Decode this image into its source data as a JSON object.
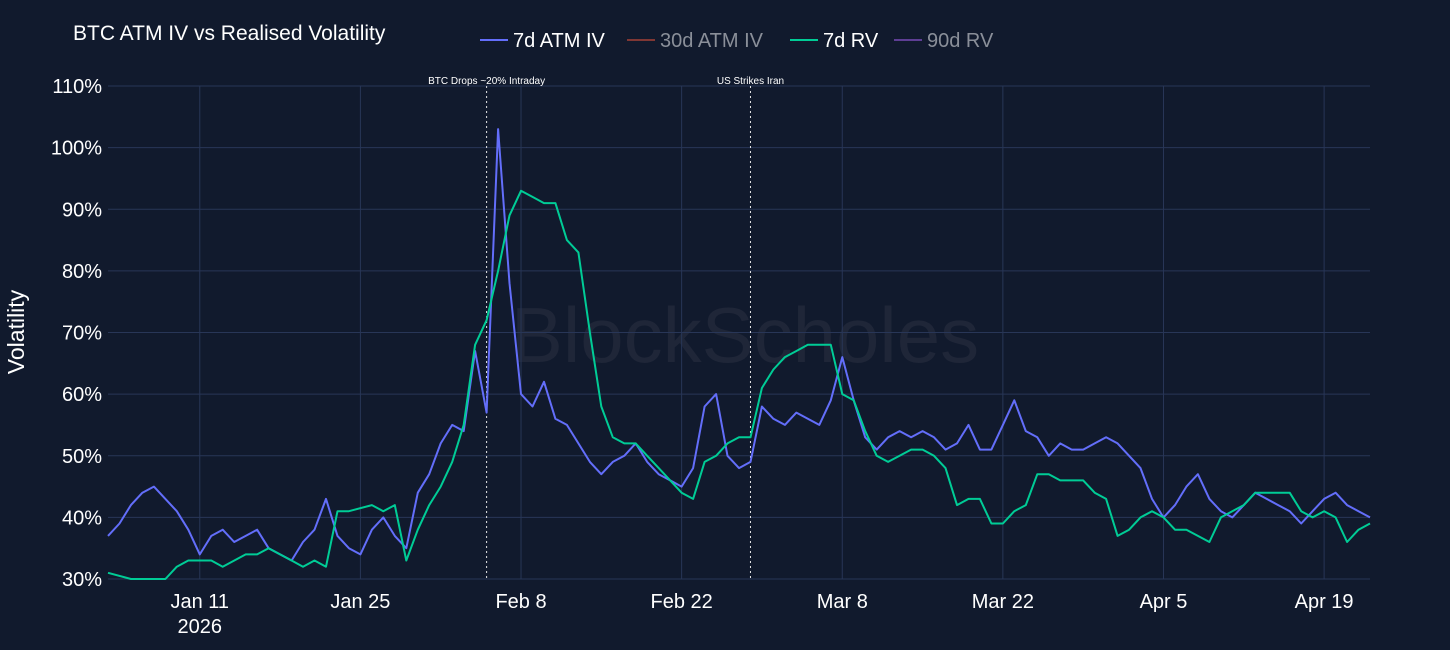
{
  "chart_data": {
    "type": "line",
    "title": "BTC ATM IV vs Realised Volatility",
    "xlabel": "",
    "ylabel": "Volatility",
    "watermark": "BlockScholes",
    "y_unit": "%",
    "ylim": [
      30,
      110
    ],
    "y_ticks": [
      "30%",
      "40%",
      "50%",
      "60%",
      "70%",
      "80%",
      "90%",
      "100%",
      "110%"
    ],
    "xlim": [
      "2026-01-03",
      "2026-04-23"
    ],
    "x_ticks": [
      {
        "date": "2026-01-11",
        "label": "Jan 11",
        "sublabel": "2026"
      },
      {
        "date": "2026-01-25",
        "label": "Jan 25",
        "sublabel": ""
      },
      {
        "date": "2026-02-08",
        "label": "Feb 8",
        "sublabel": ""
      },
      {
        "date": "2026-02-22",
        "label": "Feb 22",
        "sublabel": ""
      },
      {
        "date": "2026-03-08",
        "label": "Mar 8",
        "sublabel": ""
      },
      {
        "date": "2026-03-22",
        "label": "Mar 22",
        "sublabel": ""
      },
      {
        "date": "2026-04-05",
        "label": "Apr 5",
        "sublabel": ""
      },
      {
        "date": "2026-04-19",
        "label": "Apr 19",
        "sublabel": ""
      }
    ],
    "annotations": [
      {
        "date": "2026-02-05",
        "label": "BTC Drops ~20% Intraday"
      },
      {
        "date": "2026-02-28",
        "label": "US Strikes Iran"
      }
    ],
    "legend_position": "top",
    "grid": true,
    "series": [
      {
        "name": "7d ATM IV",
        "color": "#636efa",
        "visible": true,
        "points": [
          [
            "2026-01-03",
            37
          ],
          [
            "2026-01-04",
            39
          ],
          [
            "2026-01-05",
            42
          ],
          [
            "2026-01-06",
            44
          ],
          [
            "2026-01-07",
            45
          ],
          [
            "2026-01-08",
            43
          ],
          [
            "2026-01-09",
            41
          ],
          [
            "2026-01-10",
            38
          ],
          [
            "2026-01-11",
            34
          ],
          [
            "2026-01-12",
            37
          ],
          [
            "2026-01-13",
            38
          ],
          [
            "2026-01-14",
            36
          ],
          [
            "2026-01-15",
            37
          ],
          [
            "2026-01-16",
            38
          ],
          [
            "2026-01-17",
            35
          ],
          [
            "2026-01-18",
            34
          ],
          [
            "2026-01-19",
            33
          ],
          [
            "2026-01-20",
            36
          ],
          [
            "2026-01-21",
            38
          ],
          [
            "2026-01-22",
            43
          ],
          [
            "2026-01-23",
            37
          ],
          [
            "2026-01-24",
            35
          ],
          [
            "2026-01-25",
            34
          ],
          [
            "2026-01-26",
            38
          ],
          [
            "2026-01-27",
            40
          ],
          [
            "2026-01-28",
            37
          ],
          [
            "2026-01-29",
            35
          ],
          [
            "2026-01-30",
            44
          ],
          [
            "2026-01-31",
            47
          ],
          [
            "2026-02-01",
            52
          ],
          [
            "2026-02-02",
            55
          ],
          [
            "2026-02-03",
            54
          ],
          [
            "2026-02-04",
            67
          ],
          [
            "2026-02-05",
            57
          ],
          [
            "2026-02-06",
            103
          ],
          [
            "2026-02-07",
            78
          ],
          [
            "2026-02-08",
            60
          ],
          [
            "2026-02-09",
            58
          ],
          [
            "2026-02-10",
            62
          ],
          [
            "2026-02-11",
            56
          ],
          [
            "2026-02-12",
            55
          ],
          [
            "2026-02-13",
            52
          ],
          [
            "2026-02-14",
            49
          ],
          [
            "2026-02-15",
            47
          ],
          [
            "2026-02-16",
            49
          ],
          [
            "2026-02-17",
            50
          ],
          [
            "2026-02-18",
            52
          ],
          [
            "2026-02-19",
            49
          ],
          [
            "2026-02-20",
            47
          ],
          [
            "2026-02-21",
            46
          ],
          [
            "2026-02-22",
            45
          ],
          [
            "2026-02-23",
            48
          ],
          [
            "2026-02-24",
            58
          ],
          [
            "2026-02-25",
            60
          ],
          [
            "2026-02-26",
            50
          ],
          [
            "2026-02-27",
            48
          ],
          [
            "2026-02-28",
            49
          ],
          [
            "2026-03-01",
            58
          ],
          [
            "2026-03-02",
            56
          ],
          [
            "2026-03-03",
            55
          ],
          [
            "2026-03-04",
            57
          ],
          [
            "2026-03-05",
            56
          ],
          [
            "2026-03-06",
            55
          ],
          [
            "2026-03-07",
            59
          ],
          [
            "2026-03-08",
            66
          ],
          [
            "2026-03-09",
            59
          ],
          [
            "2026-03-10",
            53
          ],
          [
            "2026-03-11",
            51
          ],
          [
            "2026-03-12",
            53
          ],
          [
            "2026-03-13",
            54
          ],
          [
            "2026-03-14",
            53
          ],
          [
            "2026-03-15",
            54
          ],
          [
            "2026-03-16",
            53
          ],
          [
            "2026-03-17",
            51
          ],
          [
            "2026-03-18",
            52
          ],
          [
            "2026-03-19",
            55
          ],
          [
            "2026-03-20",
            51
          ],
          [
            "2026-03-21",
            51
          ],
          [
            "2026-03-22",
            55
          ],
          [
            "2026-03-23",
            59
          ],
          [
            "2026-03-24",
            54
          ],
          [
            "2026-03-25",
            53
          ],
          [
            "2026-03-26",
            50
          ],
          [
            "2026-03-27",
            52
          ],
          [
            "2026-03-28",
            51
          ],
          [
            "2026-03-29",
            51
          ],
          [
            "2026-03-30",
            52
          ],
          [
            "2026-03-31",
            53
          ],
          [
            "2026-04-01",
            52
          ],
          [
            "2026-04-02",
            50
          ],
          [
            "2026-04-03",
            48
          ],
          [
            "2026-04-04",
            43
          ],
          [
            "2026-04-05",
            40
          ],
          [
            "2026-04-06",
            42
          ],
          [
            "2026-04-07",
            45
          ],
          [
            "2026-04-08",
            47
          ],
          [
            "2026-04-09",
            43
          ],
          [
            "2026-04-10",
            41
          ],
          [
            "2026-04-11",
            40
          ],
          [
            "2026-04-12",
            42
          ],
          [
            "2026-04-13",
            44
          ],
          [
            "2026-04-14",
            43
          ],
          [
            "2026-04-15",
            42
          ],
          [
            "2026-04-16",
            41
          ],
          [
            "2026-04-17",
            39
          ],
          [
            "2026-04-18",
            41
          ],
          [
            "2026-04-19",
            43
          ],
          [
            "2026-04-20",
            44
          ],
          [
            "2026-04-21",
            42
          ],
          [
            "2026-04-22",
            41
          ],
          [
            "2026-04-23",
            40
          ]
        ]
      },
      {
        "name": "30d ATM IV",
        "color": "#ef553b",
        "visible": false,
        "points": []
      },
      {
        "name": "7d RV",
        "color": "#00cc96",
        "visible": true,
        "points": [
          [
            "2026-01-03",
            31
          ],
          [
            "2026-01-05",
            28
          ],
          [
            "2026-01-08",
            29
          ],
          [
            "2026-01-09",
            32
          ],
          [
            "2026-01-10",
            33
          ],
          [
            "2026-01-12",
            33
          ],
          [
            "2026-01-13",
            32
          ],
          [
            "2026-01-15",
            34
          ],
          [
            "2026-01-16",
            34
          ],
          [
            "2026-01-17",
            35
          ],
          [
            "2026-01-19",
            33
          ],
          [
            "2026-01-20",
            32
          ],
          [
            "2026-01-21",
            33
          ],
          [
            "2026-01-22",
            32
          ],
          [
            "2026-01-23",
            41
          ],
          [
            "2026-01-24",
            41
          ],
          [
            "2026-01-26",
            42
          ],
          [
            "2026-01-27",
            41
          ],
          [
            "2026-01-28",
            42
          ],
          [
            "2026-01-29",
            33
          ],
          [
            "2026-01-30",
            38
          ],
          [
            "2026-01-31",
            42
          ],
          [
            "2026-02-01",
            45
          ],
          [
            "2026-02-02",
            49
          ],
          [
            "2026-02-03",
            55
          ],
          [
            "2026-02-04",
            68
          ],
          [
            "2026-02-05",
            72
          ],
          [
            "2026-02-06",
            80
          ],
          [
            "2026-02-07",
            89
          ],
          [
            "2026-02-08",
            93
          ],
          [
            "2026-02-09",
            92
          ],
          [
            "2026-02-10",
            91
          ],
          [
            "2026-02-11",
            91
          ],
          [
            "2026-02-12",
            85
          ],
          [
            "2026-02-13",
            83
          ],
          [
            "2026-02-14",
            70
          ],
          [
            "2026-02-15",
            58
          ],
          [
            "2026-02-16",
            53
          ],
          [
            "2026-02-17",
            52
          ],
          [
            "2026-02-18",
            52
          ],
          [
            "2026-02-19",
            50
          ],
          [
            "2026-02-20",
            48
          ],
          [
            "2026-02-21",
            46
          ],
          [
            "2026-02-22",
            44
          ],
          [
            "2026-02-23",
            43
          ],
          [
            "2026-02-24",
            49
          ],
          [
            "2026-02-25",
            50
          ],
          [
            "2026-02-26",
            52
          ],
          [
            "2026-02-27",
            53
          ],
          [
            "2026-02-28",
            53
          ],
          [
            "2026-03-01",
            61
          ],
          [
            "2026-03-02",
            64
          ],
          [
            "2026-03-03",
            66
          ],
          [
            "2026-03-04",
            67
          ],
          [
            "2026-03-05",
            68
          ],
          [
            "2026-03-06",
            68
          ],
          [
            "2026-03-07",
            68
          ],
          [
            "2026-03-08",
            60
          ],
          [
            "2026-03-09",
            59
          ],
          [
            "2026-03-10",
            54
          ],
          [
            "2026-03-11",
            50
          ],
          [
            "2026-03-12",
            49
          ],
          [
            "2026-03-13",
            50
          ],
          [
            "2026-03-14",
            51
          ],
          [
            "2026-03-15",
            51
          ],
          [
            "2026-03-16",
            50
          ],
          [
            "2026-03-17",
            48
          ],
          [
            "2026-03-18",
            42
          ],
          [
            "2026-03-19",
            43
          ],
          [
            "2026-03-20",
            43
          ],
          [
            "2026-03-21",
            39
          ],
          [
            "2026-03-22",
            39
          ],
          [
            "2026-03-23",
            41
          ],
          [
            "2026-03-24",
            42
          ],
          [
            "2026-03-25",
            47
          ],
          [
            "2026-03-26",
            47
          ],
          [
            "2026-03-27",
            46
          ],
          [
            "2026-03-28",
            46
          ],
          [
            "2026-03-29",
            46
          ],
          [
            "2026-03-30",
            44
          ],
          [
            "2026-03-31",
            43
          ],
          [
            "2026-04-01",
            37
          ],
          [
            "2026-04-02",
            38
          ],
          [
            "2026-04-03",
            40
          ],
          [
            "2026-04-04",
            41
          ],
          [
            "2026-04-05",
            40
          ],
          [
            "2026-04-06",
            38
          ],
          [
            "2026-04-07",
            38
          ],
          [
            "2026-04-08",
            37
          ],
          [
            "2026-04-09",
            36
          ],
          [
            "2026-04-10",
            40
          ],
          [
            "2026-04-11",
            41
          ],
          [
            "2026-04-12",
            42
          ],
          [
            "2026-04-13",
            44
          ],
          [
            "2026-04-14",
            44
          ],
          [
            "2026-04-15",
            44
          ],
          [
            "2026-04-16",
            44
          ],
          [
            "2026-04-17",
            41
          ],
          [
            "2026-04-18",
            40
          ],
          [
            "2026-04-19",
            41
          ],
          [
            "2026-04-20",
            40
          ],
          [
            "2026-04-21",
            36
          ],
          [
            "2026-04-22",
            38
          ],
          [
            "2026-04-23",
            39
          ]
        ]
      },
      {
        "name": "90d RV",
        "color": "#ab63fa",
        "visible": false,
        "points": []
      }
    ]
  }
}
